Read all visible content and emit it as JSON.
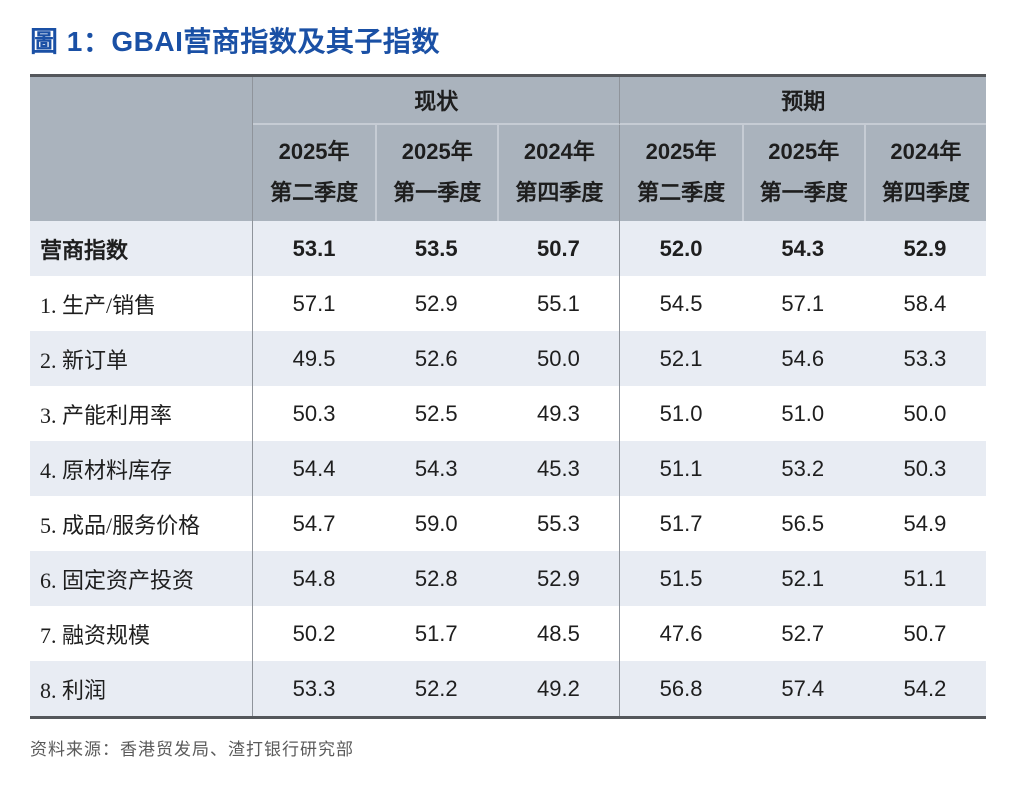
{
  "page": {
    "title": "圖 1：GBAI营商指数及其子指数",
    "source": "资料来源：香港贸发局、渣打银行研究部"
  },
  "colors": {
    "title_blue": "#1a50a5",
    "table_border_dark": "#54575b",
    "header_bg": "#aab3bd",
    "row_alt_bg": "#e8ecf3",
    "divider_gray": "#8f949b",
    "header_separator": "#c6ccd4",
    "body_text": "#1e1e1e",
    "source_gray": "#5a5a5a"
  },
  "table": {
    "groups": [
      {
        "label": "现状"
      },
      {
        "label": "预期"
      }
    ],
    "quarters": [
      {
        "line1": "2025年",
        "line2": "第二季度"
      },
      {
        "line1": "2025年",
        "line2": "第一季度"
      },
      {
        "line1": "2024年",
        "line2": "第四季度"
      },
      {
        "line1": "2025年",
        "line2": "第二季度"
      },
      {
        "line1": "2025年",
        "line2": "第一季度"
      },
      {
        "line1": "2024年",
        "line2": "第四季度"
      }
    ],
    "rows": [
      {
        "label": "营商指数",
        "bold": true,
        "values": [
          "53.1",
          "53.5",
          "50.7",
          "52.0",
          "54.3",
          "52.9"
        ]
      },
      {
        "label": "1. 生产/销售",
        "bold": false,
        "values": [
          "57.1",
          "52.9",
          "55.1",
          "54.5",
          "57.1",
          "58.4"
        ]
      },
      {
        "label": "2. 新订单",
        "bold": false,
        "values": [
          "49.5",
          "52.6",
          "50.0",
          "52.1",
          "54.6",
          "53.3"
        ]
      },
      {
        "label": "3. 产能利用率",
        "bold": false,
        "values": [
          "50.3",
          "52.5",
          "49.3",
          "51.0",
          "51.0",
          "50.0"
        ]
      },
      {
        "label": "4. 原材料库存",
        "bold": false,
        "values": [
          "54.4",
          "54.3",
          "45.3",
          "51.1",
          "53.2",
          "50.3"
        ]
      },
      {
        "label": "5. 成品/服务价格",
        "bold": false,
        "values": [
          "54.7",
          "59.0",
          "55.3",
          "51.7",
          "56.5",
          "54.9"
        ]
      },
      {
        "label": "6. 固定资产投资",
        "bold": false,
        "values": [
          "54.8",
          "52.8",
          "52.9",
          "51.5",
          "52.1",
          "51.1"
        ]
      },
      {
        "label": "7. 融资规模",
        "bold": false,
        "values": [
          "50.2",
          "51.7",
          "48.5",
          "47.6",
          "52.7",
          "50.7"
        ]
      },
      {
        "label": "8. 利润",
        "bold": false,
        "values": [
          "53.3",
          "52.2",
          "49.2",
          "56.8",
          "57.4",
          "54.2"
        ]
      }
    ]
  },
  "chart_data": {
    "type": "table",
    "title": "圖 1：GBAI营商指数及其子指数",
    "group_headers": [
      "现状",
      "预期"
    ],
    "columns": [
      "现状 2025年第二季度",
      "现状 2025年第一季度",
      "现状 2024年第四季度",
      "预期 2025年第二季度",
      "预期 2025年第一季度",
      "预期 2024年第四季度"
    ],
    "rows": [
      {
        "label": "营商指数",
        "values": [
          53.1,
          53.5,
          50.7,
          52.0,
          54.3,
          52.9
        ]
      },
      {
        "label": "1. 生产/销售",
        "values": [
          57.1,
          52.9,
          55.1,
          54.5,
          57.1,
          58.4
        ]
      },
      {
        "label": "2. 新订单",
        "values": [
          49.5,
          52.6,
          50.0,
          52.1,
          54.6,
          53.3
        ]
      },
      {
        "label": "3. 产能利用率",
        "values": [
          50.3,
          52.5,
          49.3,
          51.0,
          51.0,
          50.0
        ]
      },
      {
        "label": "4. 原材料库存",
        "values": [
          54.4,
          54.3,
          45.3,
          51.1,
          53.2,
          50.3
        ]
      },
      {
        "label": "5. 成品/服务价格",
        "values": [
          54.7,
          59.0,
          55.3,
          51.7,
          56.5,
          54.9
        ]
      },
      {
        "label": "6. 固定资产投资",
        "values": [
          54.8,
          52.8,
          52.9,
          51.5,
          52.1,
          51.1
        ]
      },
      {
        "label": "7. 融资规模",
        "values": [
          50.2,
          51.7,
          48.5,
          47.6,
          52.7,
          50.7
        ]
      },
      {
        "label": "8. 利润",
        "values": [
          53.3,
          52.2,
          49.2,
          56.8,
          57.4,
          54.2
        ]
      }
    ],
    "source": "资料来源：香港贸发局、渣打银行研究部"
  }
}
